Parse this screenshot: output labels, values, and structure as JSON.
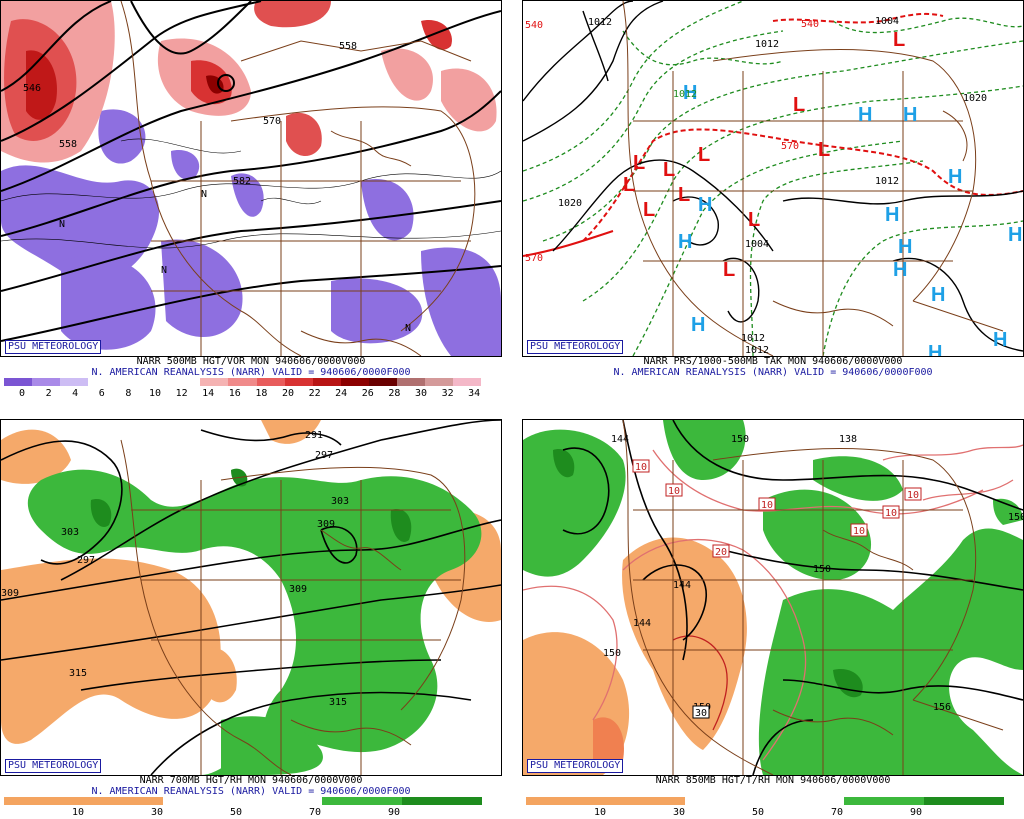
{
  "panels": [
    {
      "id": "p500",
      "title_line1": "NARR 500MB HGT/VOR MON 940606/0000V000",
      "title_line2": "N. AMERICAN REANALYSIS (NARR) VALID = 940606/0000F000",
      "badge": "PSU METEOROLOGY",
      "colorbar": {
        "colors": [
          "#7b55d3",
          "#a98ae8",
          "#cdbdf4",
          "#ffffff",
          "#ffffff",
          "#ffffff",
          "#ffffff",
          "#f5b3b3",
          "#f08a8a",
          "#e85c5c",
          "#d83232",
          "#b81414",
          "#8c0000",
          "#6a0000",
          "#b07070",
          "#d49a9a",
          "#f4b8c8"
        ],
        "tick_labels": [
          "0",
          "2",
          "4",
          "6",
          "8",
          "10",
          "12",
          "14",
          "16",
          "18",
          "20",
          "22",
          "24",
          "26",
          "28",
          "30",
          "32",
          "34"
        ]
      },
      "contour_labels": [
        {
          "text": "546",
          "color": "#000"
        },
        {
          "text": "558",
          "color": "#000"
        },
        {
          "text": "570",
          "color": "#000"
        },
        {
          "text": "582",
          "color": "#000"
        },
        {
          "text": "558",
          "color": "#000"
        },
        {
          "text": "N",
          "color": "#000"
        },
        {
          "text": "N",
          "color": "#000"
        },
        {
          "text": "N",
          "color": "#000"
        },
        {
          "text": "N",
          "color": "#000"
        }
      ]
    },
    {
      "id": "pprs",
      "title_line1": "NARR PRS/1000-500MB TAK MON 940606/0000V000",
      "title_line2": "N. AMERICAN REANALYSIS (NARR) VALID = 940606/0000F000",
      "badge": "PSU METEOROLOGY",
      "isobar_labels": [
        "1012",
        "1004",
        "1012",
        "1020",
        "1004",
        "1012",
        "1020",
        "1012",
        "1012",
        "540",
        "570",
        "570",
        "540",
        "1012"
      ],
      "pressure_letters": {
        "high": "H",
        "low": "L",
        "high_color": "#1ea0e6",
        "low_color": "#e01010"
      }
    },
    {
      "id": "p700",
      "title_line1": "NARR 700MB HGT/RH MON 940606/0000V000",
      "title_line2": "N. AMERICAN REANALYSIS (NARR) VALID = 940606/0000F000",
      "badge": "PSU METEOROLOGY",
      "colorbar": {
        "colors": [
          "#f4a460",
          "#f4a460",
          "#ffffff",
          "#ffffff",
          "#3cb83c",
          "#1e8c1e"
        ],
        "tick_labels": [
          "10",
          "30",
          "50",
          "70",
          "90"
        ]
      },
      "contour_labels": [
        "291",
        "297",
        "303",
        "309",
        "309",
        "303",
        "297",
        "309",
        "315",
        "315"
      ]
    },
    {
      "id": "p850",
      "title_line1": "NARR 850MB HGT/T/RH MON 940606/0000V000",
      "title_line2": "",
      "badge": "PSU METEOROLOGY",
      "colorbar": {
        "colors": [
          "#f4a460",
          "#f4a460",
          "#ffffff",
          "#ffffff",
          "#3cb83c",
          "#1e8c1e"
        ],
        "tick_labels": [
          "10",
          "30",
          "50",
          "70",
          "90"
        ]
      },
      "contour_labels": [
        "144",
        "150",
        "138",
        "144",
        "150",
        "150",
        "144",
        "150",
        "156",
        "150"
      ],
      "temp_labels": [
        "10",
        "10",
        "10",
        "10",
        "10",
        "20",
        "30",
        "10"
      ]
    }
  ]
}
